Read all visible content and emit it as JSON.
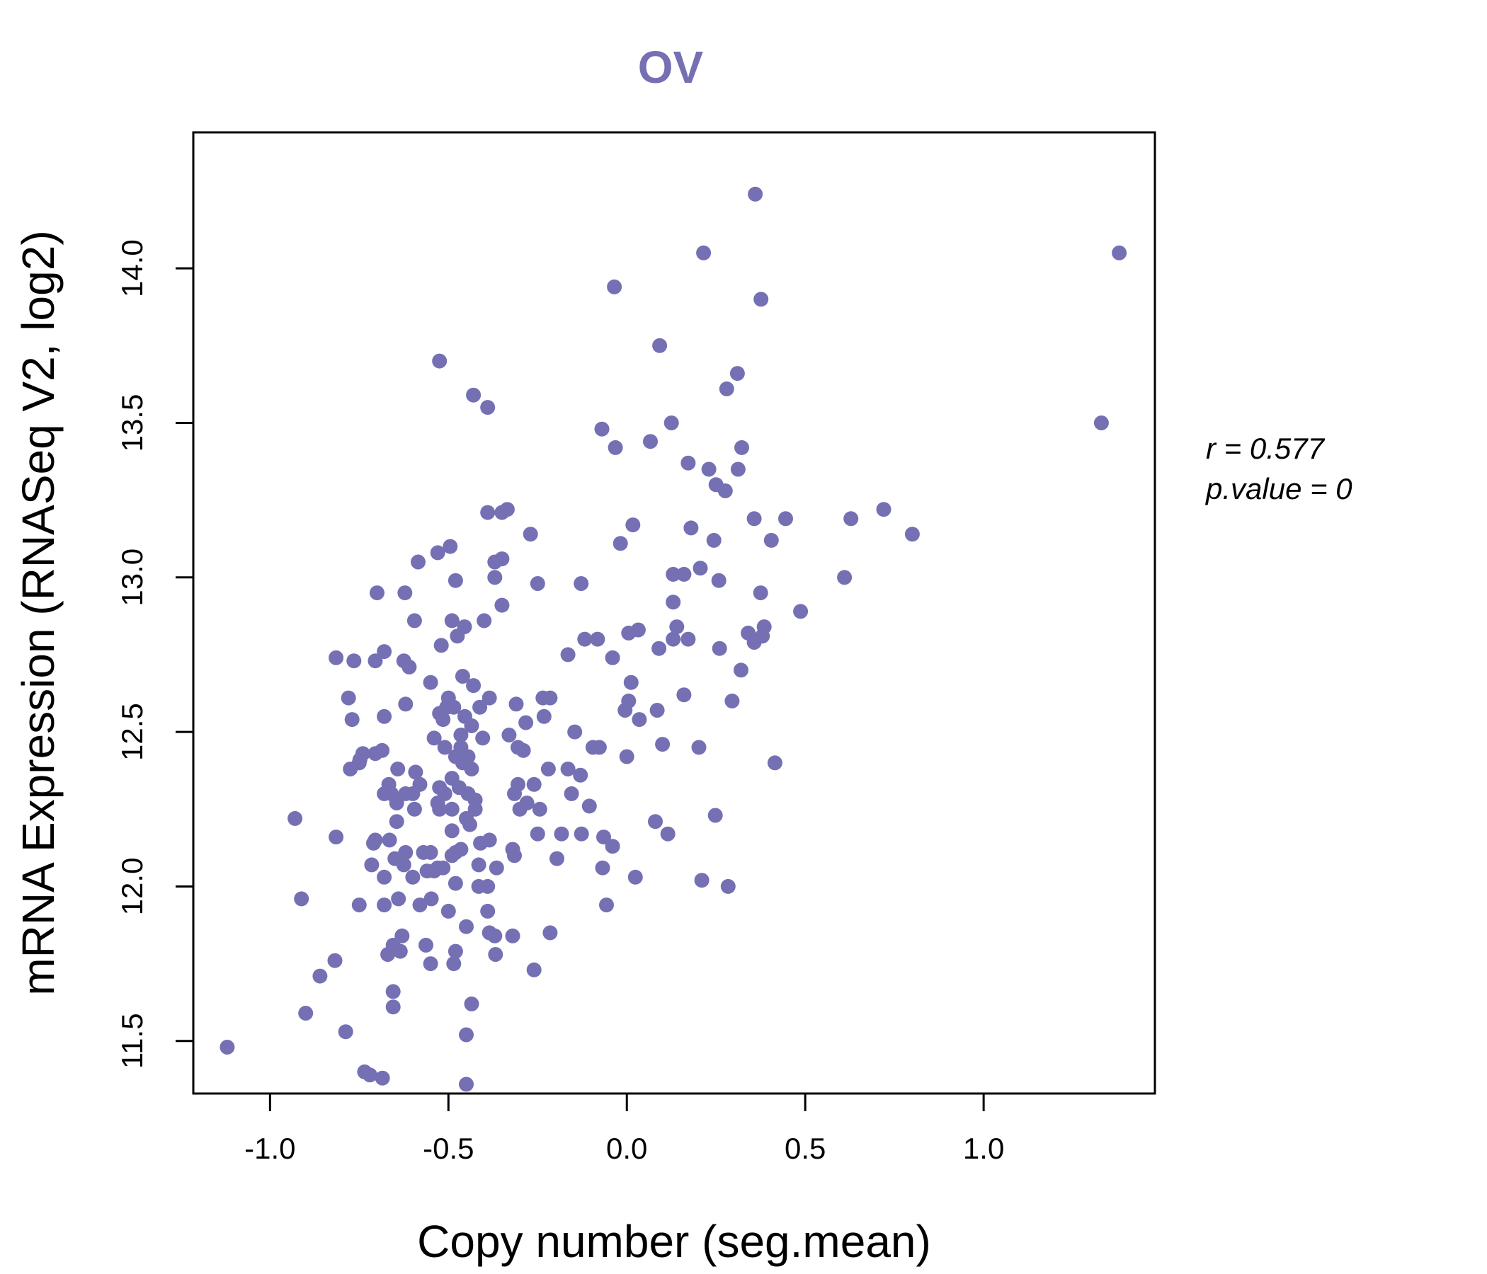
{
  "chart_data": {
    "type": "scatter",
    "title": "OV",
    "xlabel": "Copy number (seg.mean)",
    "ylabel": "mRNA Expression (RNASeq V2, log2)",
    "xlim": [
      -1.215,
      1.48
    ],
    "ylim": [
      11.33,
      14.44
    ],
    "x_ticks": [
      -1.0,
      -0.5,
      0.0,
      0.5,
      1.0
    ],
    "x_tick_labels": [
      "-1.0",
      "-0.5",
      "0.0",
      "0.5",
      "1.0"
    ],
    "y_ticks": [
      11.5,
      12.0,
      12.5,
      13.0,
      13.5,
      14.0
    ],
    "y_tick_labels": [
      "11.5",
      "12.0",
      "12.5",
      "13.0",
      "13.5",
      "14.0"
    ],
    "grid": false,
    "legend": "none",
    "point_color": "#7570b3",
    "annotations": {
      "r_label": "r = 0.577",
      "p_label": "p.value = 0"
    },
    "points": [
      [
        0.36,
        14.24
      ],
      [
        1.38,
        14.05
      ],
      [
        0.215,
        14.05
      ],
      [
        -0.035,
        13.94
      ],
      [
        0.376,
        13.9
      ],
      [
        0.092,
        13.75
      ],
      [
        0.31,
        13.66
      ],
      [
        0.28,
        13.61
      ],
      [
        1.33,
        13.5
      ],
      [
        0.125,
        13.5
      ],
      [
        -0.07,
        13.48
      ],
      [
        0.066,
        13.44
      ],
      [
        0.322,
        13.42
      ],
      [
        -0.032,
        13.42
      ],
      [
        0.172,
        13.37
      ],
      [
        0.23,
        13.35
      ],
      [
        0.312,
        13.35
      ],
      [
        0.25,
        13.3
      ],
      [
        0.276,
        13.28
      ],
      [
        0.72,
        13.22
      ],
      [
        0.628,
        13.19
      ],
      [
        0.445,
        13.19
      ],
      [
        0.357,
        13.19
      ],
      [
        0.017,
        13.17
      ],
      [
        0.18,
        13.16
      ],
      [
        0.8,
        13.14
      ],
      [
        0.405,
        13.12
      ],
      [
        0.244,
        13.12
      ],
      [
        -0.018,
        13.11
      ],
      [
        0.13,
        13.01
      ],
      [
        0.16,
        13.01
      ],
      [
        0.206,
        13.03
      ],
      [
        0.61,
        13.0
      ],
      [
        0.258,
        12.99
      ],
      [
        0.375,
        12.95
      ],
      [
        0.13,
        12.92
      ],
      [
        0.487,
        12.89
      ],
      [
        0.14,
        12.84
      ],
      [
        0.385,
        12.84
      ],
      [
        0.34,
        12.82
      ],
      [
        0.032,
        12.83
      ],
      [
        0.005,
        12.82
      ],
      [
        0.13,
        12.8
      ],
      [
        0.172,
        12.8
      ],
      [
        0.357,
        12.79
      ],
      [
        0.38,
        12.81
      ],
      [
        0.09,
        12.77
      ],
      [
        0.26,
        12.77
      ],
      [
        0.32,
        12.7
      ],
      [
        0.012,
        12.66
      ],
      [
        0.16,
        12.62
      ],
      [
        0.295,
        12.6
      ],
      [
        0.085,
        12.57
      ],
      [
        0.005,
        12.6
      ],
      [
        -0.005,
        12.57
      ],
      [
        0.035,
        12.54
      ],
      [
        0.1,
        12.46
      ],
      [
        0.202,
        12.45
      ],
      [
        0.0,
        12.42
      ],
      [
        0.415,
        12.4
      ],
      [
        0.248,
        12.23
      ],
      [
        0.08,
        12.21
      ],
      [
        0.115,
        12.17
      ],
      [
        0.024,
        12.03
      ],
      [
        0.21,
        12.02
      ],
      [
        0.284,
        12.0
      ],
      [
        -0.525,
        13.7
      ],
      [
        -0.43,
        13.59
      ],
      [
        -0.39,
        13.55
      ],
      [
        -0.335,
        13.22
      ],
      [
        -0.35,
        13.21
      ],
      [
        -0.39,
        13.21
      ],
      [
        -0.27,
        13.14
      ],
      [
        -0.35,
        13.06
      ],
      [
        -0.37,
        13.05
      ],
      [
        -0.495,
        13.1
      ],
      [
        -0.53,
        13.08
      ],
      [
        -0.585,
        13.05
      ],
      [
        -0.37,
        13.0
      ],
      [
        -0.25,
        12.98
      ],
      [
        -0.48,
        12.99
      ],
      [
        -0.128,
        12.98
      ],
      [
        -0.7,
        12.95
      ],
      [
        -0.622,
        12.95
      ],
      [
        -0.35,
        12.91
      ],
      [
        -0.595,
        12.86
      ],
      [
        -0.4,
        12.86
      ],
      [
        -0.49,
        12.86
      ],
      [
        -0.455,
        12.84
      ],
      [
        -0.475,
        12.81
      ],
      [
        -0.082,
        12.8
      ],
      [
        -0.118,
        12.8
      ],
      [
        -0.765,
        12.73
      ],
      [
        -0.705,
        12.73
      ],
      [
        -0.68,
        12.76
      ],
      [
        -0.61,
        12.71
      ],
      [
        -0.52,
        12.78
      ],
      [
        -0.04,
        12.74
      ],
      [
        -0.815,
        12.74
      ],
      [
        -0.625,
        12.73
      ],
      [
        -0.165,
        12.75
      ],
      [
        -0.46,
        12.68
      ],
      [
        -0.55,
        12.66
      ],
      [
        -0.43,
        12.65
      ],
      [
        -0.385,
        12.61
      ],
      [
        -0.215,
        12.61
      ],
      [
        -0.235,
        12.61
      ],
      [
        -0.5,
        12.61
      ],
      [
        -0.31,
        12.59
      ],
      [
        -0.78,
        12.61
      ],
      [
        -0.62,
        12.59
      ],
      [
        -0.505,
        12.58
      ],
      [
        -0.485,
        12.58
      ],
      [
        -0.525,
        12.56
      ],
      [
        -0.412,
        12.58
      ],
      [
        -0.515,
        12.54
      ],
      [
        -0.454,
        12.55
      ],
      [
        -0.77,
        12.54
      ],
      [
        -0.68,
        12.55
      ],
      [
        -0.435,
        12.52
      ],
      [
        -0.232,
        12.55
      ],
      [
        -0.283,
        12.53
      ],
      [
        -0.465,
        12.49
      ],
      [
        -0.33,
        12.49
      ],
      [
        -0.146,
        12.5
      ],
      [
        -0.404,
        12.48
      ],
      [
        -0.465,
        12.45
      ],
      [
        -0.54,
        12.48
      ],
      [
        -0.51,
        12.45
      ],
      [
        -0.305,
        12.45
      ],
      [
        -0.095,
        12.45
      ],
      [
        -0.077,
        12.45
      ],
      [
        -0.686,
        12.44
      ],
      [
        -0.74,
        12.43
      ],
      [
        -0.705,
        12.43
      ],
      [
        -0.748,
        12.41
      ],
      [
        -0.75,
        12.4
      ],
      [
        -0.775,
        12.38
      ],
      [
        -0.48,
        12.42
      ],
      [
        -0.46,
        12.4
      ],
      [
        -0.445,
        12.42
      ],
      [
        -0.29,
        12.44
      ],
      [
        -0.435,
        12.38
      ],
      [
        -0.642,
        12.38
      ],
      [
        -0.592,
        12.37
      ],
      [
        -0.22,
        12.38
      ],
      [
        -0.165,
        12.38
      ],
      [
        -0.13,
        12.36
      ],
      [
        -0.49,
        12.35
      ],
      [
        -0.305,
        12.33
      ],
      [
        -0.26,
        12.33
      ],
      [
        -0.58,
        12.33
      ],
      [
        -0.667,
        12.33
      ],
      [
        -0.525,
        12.32
      ],
      [
        -0.47,
        12.32
      ],
      [
        -0.315,
        12.3
      ],
      [
        -0.155,
        12.3
      ],
      [
        -0.68,
        12.3
      ],
      [
        -0.6,
        12.3
      ],
      [
        -0.66,
        12.3
      ],
      [
        -0.51,
        12.3
      ],
      [
        -0.62,
        12.3
      ],
      [
        -0.445,
        12.3
      ],
      [
        -0.425,
        12.28
      ],
      [
        -0.645,
        12.27
      ],
      [
        -0.53,
        12.27
      ],
      [
        -0.28,
        12.27
      ],
      [
        -0.525,
        12.25
      ],
      [
        -0.425,
        12.25
      ],
      [
        -0.3,
        12.25
      ],
      [
        -0.244,
        12.25
      ],
      [
        -0.49,
        12.25
      ],
      [
        -0.595,
        12.25
      ],
      [
        -0.105,
        12.26
      ],
      [
        -0.45,
        12.22
      ],
      [
        -0.44,
        12.2
      ],
      [
        -0.93,
        12.22
      ],
      [
        -0.645,
        12.21
      ],
      [
        -0.49,
        12.18
      ],
      [
        -0.25,
        12.17
      ],
      [
        -0.183,
        12.17
      ],
      [
        -0.127,
        12.17
      ],
      [
        -0.065,
        12.16
      ],
      [
        -0.815,
        12.16
      ],
      [
        -0.705,
        12.15
      ],
      [
        -0.665,
        12.15
      ],
      [
        -0.41,
        12.14
      ],
      [
        -0.385,
        12.15
      ],
      [
        -0.04,
        12.13
      ],
      [
        -0.71,
        12.14
      ],
      [
        -0.32,
        12.12
      ],
      [
        -0.465,
        12.12
      ],
      [
        -0.62,
        12.11
      ],
      [
        -0.55,
        12.11
      ],
      [
        -0.57,
        12.11
      ],
      [
        -0.48,
        12.11
      ],
      [
        -0.49,
        12.1
      ],
      [
        -0.315,
        12.1
      ],
      [
        -0.196,
        12.09
      ],
      [
        -0.65,
        12.09
      ],
      [
        -0.415,
        12.07
      ],
      [
        -0.715,
        12.07
      ],
      [
        -0.625,
        12.07
      ],
      [
        -0.365,
        12.06
      ],
      [
        -0.068,
        12.06
      ],
      [
        -0.53,
        12.06
      ],
      [
        -0.56,
        12.05
      ],
      [
        -0.54,
        12.05
      ],
      [
        -0.515,
        12.06
      ],
      [
        -0.68,
        12.03
      ],
      [
        -0.6,
        12.03
      ],
      [
        -0.415,
        12.0
      ],
      [
        -0.39,
        12.0
      ],
      [
        -0.48,
        12.01
      ],
      [
        -0.912,
        11.96
      ],
      [
        -0.548,
        11.96
      ],
      [
        -0.64,
        11.96
      ],
      [
        -0.75,
        11.94
      ],
      [
        -0.68,
        11.94
      ],
      [
        -0.58,
        11.94
      ],
      [
        -0.057,
        11.94
      ],
      [
        -0.39,
        11.92
      ],
      [
        -0.5,
        11.92
      ],
      [
        -0.45,
        11.87
      ],
      [
        -0.215,
        11.85
      ],
      [
        -0.385,
        11.85
      ],
      [
        -0.37,
        11.84
      ],
      [
        -0.32,
        11.84
      ],
      [
        -0.63,
        11.84
      ],
      [
        -0.655,
        11.81
      ],
      [
        -0.563,
        11.81
      ],
      [
        -0.635,
        11.79
      ],
      [
        -0.48,
        11.79
      ],
      [
        -0.67,
        11.78
      ],
      [
        -0.368,
        11.78
      ],
      [
        -0.818,
        11.76
      ],
      [
        -0.55,
        11.75
      ],
      [
        -0.485,
        11.75
      ],
      [
        -0.26,
        11.73
      ],
      [
        -0.86,
        11.71
      ],
      [
        -0.655,
        11.66
      ],
      [
        -0.435,
        11.62
      ],
      [
        -0.655,
        11.61
      ],
      [
        -0.9,
        11.59
      ],
      [
        -0.788,
        11.53
      ],
      [
        -0.45,
        11.52
      ],
      [
        -1.12,
        11.48
      ],
      [
        -0.735,
        11.4
      ],
      [
        -0.72,
        11.39
      ],
      [
        -0.685,
        11.38
      ],
      [
        -0.45,
        11.36
      ]
    ]
  }
}
